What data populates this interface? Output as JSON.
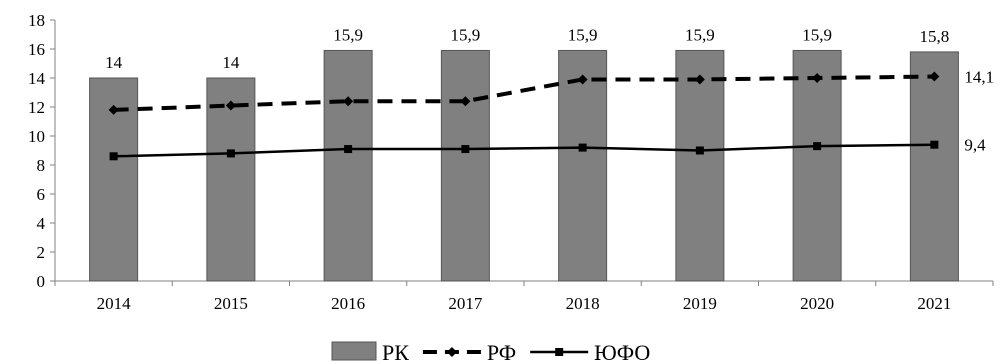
{
  "chart_data": {
    "type": "bar",
    "categories": [
      "2014",
      "2015",
      "2016",
      "2017",
      "2018",
      "2019",
      "2020",
      "2021"
    ],
    "ylim": [
      0,
      18
    ],
    "yticks": [
      0,
      2,
      4,
      6,
      8,
      10,
      12,
      14,
      16,
      18
    ],
    "grid": false,
    "legend_position": "bottom",
    "series": [
      {
        "name": "РК",
        "kind": "bar",
        "color": "#808080",
        "values": [
          14,
          14,
          15.9,
          15.9,
          15.9,
          15.9,
          15.9,
          15.8
        ],
        "labels": [
          "14",
          "14",
          "15,9",
          "15,9",
          "15,9",
          "15,9",
          "15,9",
          "15,8"
        ]
      },
      {
        "name": "РФ",
        "kind": "line",
        "style": "dashed",
        "marker": "diamond",
        "color": "#000000",
        "values": [
          11.8,
          12.1,
          12.4,
          12.4,
          13.9,
          13.9,
          14.0,
          14.1
        ],
        "end_label": "14,1"
      },
      {
        "name": "ЮФО",
        "kind": "line",
        "style": "solid",
        "marker": "square",
        "color": "#000000",
        "values": [
          8.6,
          8.8,
          9.1,
          9.1,
          9.2,
          9.0,
          9.3,
          9.4
        ],
        "end_label": "9,4"
      }
    ]
  }
}
